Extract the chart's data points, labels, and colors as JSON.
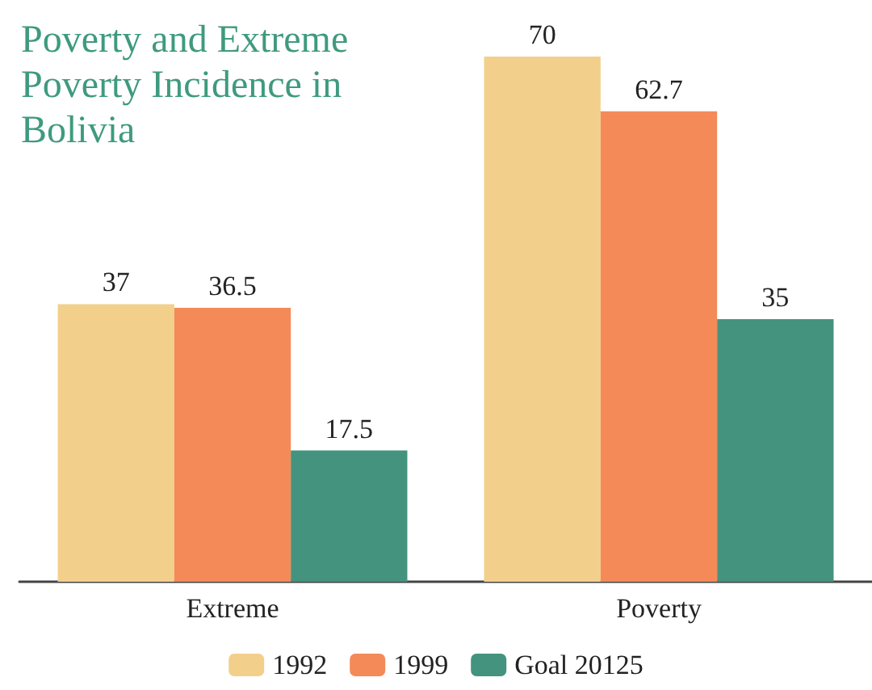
{
  "chart_data": {
    "type": "bar",
    "title": "Poverty and Extreme Poverty Incidence in Bolivia",
    "categories": [
      "Extreme",
      "Poverty"
    ],
    "series": [
      {
        "name": "1992",
        "color": "#f3cf8c",
        "values": [
          37,
          70
        ]
      },
      {
        "name": "1999",
        "color": "#f48a57",
        "values": [
          36.5,
          62.7
        ]
      },
      {
        "name": "Goal 20125",
        "color": "#44937f",
        "values": [
          17.5,
          35
        ]
      }
    ],
    "data_labels": true,
    "legend": "bottom"
  }
}
